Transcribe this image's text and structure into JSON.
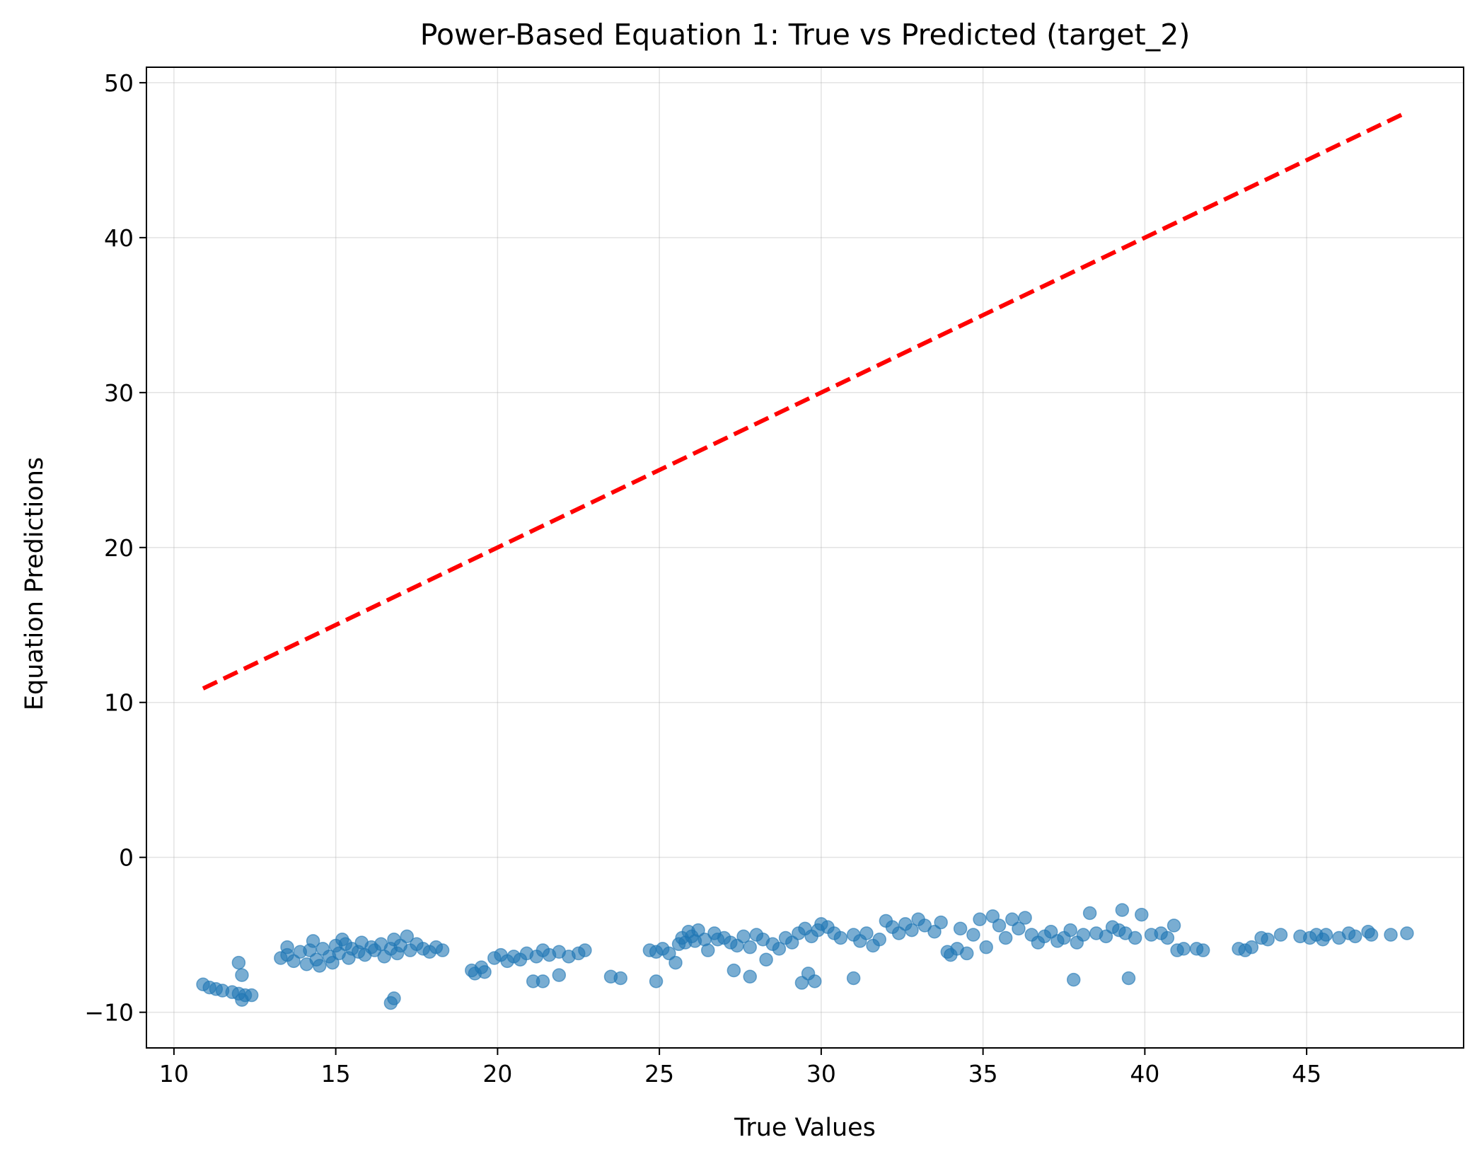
{
  "chart_data": {
    "type": "scatter",
    "title": "Power-Based Equation 1: True vs Predicted (target_2)",
    "xlabel": "True Values",
    "ylabel": "Equation Predictions",
    "xlim": [
      9.15,
      49.85
    ],
    "ylim": [
      -12.3,
      51.0
    ],
    "xticks": [
      10,
      15,
      20,
      25,
      30,
      35,
      40,
      45
    ],
    "yticks": [
      -10,
      0,
      10,
      20,
      30,
      40,
      50
    ],
    "grid": true,
    "colors": {
      "points": "#1f77b4",
      "reference_line": "#ff0000"
    },
    "reference_line": {
      "style": "dashed",
      "x": [
        10.9,
        48.1
      ],
      "y": [
        10.9,
        48.1
      ]
    },
    "series": [
      {
        "type": "scatter",
        "points": [
          [
            10.9,
            -8.2
          ],
          [
            11.1,
            -8.4
          ],
          [
            11.3,
            -8.5
          ],
          [
            11.5,
            -8.6
          ],
          [
            11.8,
            -8.7
          ],
          [
            12.0,
            -8.8
          ],
          [
            12.1,
            -9.2
          ],
          [
            12.2,
            -8.9
          ],
          [
            12.4,
            -8.9
          ],
          [
            12.0,
            -6.8
          ],
          [
            12.1,
            -7.6
          ],
          [
            13.3,
            -6.5
          ],
          [
            13.5,
            -6.3
          ],
          [
            13.7,
            -6.7
          ],
          [
            13.9,
            -6.1
          ],
          [
            14.1,
            -6.9
          ],
          [
            14.2,
            -6.0
          ],
          [
            14.4,
            -6.6
          ],
          [
            14.5,
            -7.0
          ],
          [
            14.6,
            -5.9
          ],
          [
            14.8,
            -6.4
          ],
          [
            14.9,
            -6.8
          ],
          [
            15.0,
            -5.7
          ],
          [
            15.1,
            -6.2
          ],
          [
            15.3,
            -5.6
          ],
          [
            15.4,
            -6.5
          ],
          [
            15.5,
            -5.9
          ],
          [
            15.7,
            -6.1
          ],
          [
            15.8,
            -5.5
          ],
          [
            15.9,
            -6.3
          ],
          [
            16.1,
            -5.8
          ],
          [
            16.2,
            -6.0
          ],
          [
            16.4,
            -5.6
          ],
          [
            16.5,
            -6.4
          ],
          [
            16.7,
            -5.9
          ],
          [
            16.8,
            -5.3
          ],
          [
            16.9,
            -6.2
          ],
          [
            17.0,
            -5.7
          ],
          [
            17.2,
            -5.1
          ],
          [
            17.3,
            -6.0
          ],
          [
            17.5,
            -5.6
          ],
          [
            17.7,
            -5.9
          ],
          [
            17.9,
            -6.1
          ],
          [
            18.1,
            -5.8
          ],
          [
            18.3,
            -6.0
          ],
          [
            16.7,
            -9.4
          ],
          [
            16.8,
            -9.1
          ],
          [
            13.5,
            -5.8
          ],
          [
            14.3,
            -5.4
          ],
          [
            15.2,
            -5.3
          ],
          [
            19.2,
            -7.3
          ],
          [
            19.3,
            -7.5
          ],
          [
            19.5,
            -7.1
          ],
          [
            19.6,
            -7.4
          ],
          [
            19.9,
            -6.5
          ],
          [
            20.1,
            -6.3
          ],
          [
            20.3,
            -6.7
          ],
          [
            20.5,
            -6.4
          ],
          [
            20.7,
            -6.6
          ],
          [
            20.9,
            -6.2
          ],
          [
            21.2,
            -6.4
          ],
          [
            21.4,
            -6.0
          ],
          [
            21.6,
            -6.3
          ],
          [
            21.9,
            -6.1
          ],
          [
            22.2,
            -6.4
          ],
          [
            22.5,
            -6.2
          ],
          [
            22.7,
            -6.0
          ],
          [
            21.1,
            -8.0
          ],
          [
            21.4,
            -8.0
          ],
          [
            21.9,
            -7.6
          ],
          [
            23.5,
            -7.7
          ],
          [
            23.8,
            -7.8
          ],
          [
            24.7,
            -6.0
          ],
          [
            24.9,
            -6.1
          ],
          [
            25.1,
            -5.9
          ],
          [
            25.3,
            -6.2
          ],
          [
            25.5,
            -6.8
          ],
          [
            25.6,
            -5.6
          ],
          [
            25.7,
            -5.2
          ],
          [
            25.8,
            -5.5
          ],
          [
            25.9,
            -4.8
          ],
          [
            26.0,
            -5.1
          ],
          [
            26.1,
            -5.4
          ],
          [
            26.2,
            -4.7
          ],
          [
            26.4,
            -5.3
          ],
          [
            26.5,
            -6.0
          ],
          [
            26.7,
            -4.9
          ],
          [
            26.8,
            -5.3
          ],
          [
            27.0,
            -5.2
          ],
          [
            27.2,
            -5.5
          ],
          [
            27.4,
            -5.7
          ],
          [
            27.6,
            -5.1
          ],
          [
            27.8,
            -5.8
          ],
          [
            28.0,
            -5.0
          ],
          [
            28.2,
            -5.3
          ],
          [
            28.3,
            -6.6
          ],
          [
            28.5,
            -5.6
          ],
          [
            28.7,
            -5.9
          ],
          [
            28.9,
            -5.2
          ],
          [
            29.1,
            -5.5
          ],
          [
            29.3,
            -4.9
          ],
          [
            29.5,
            -4.6
          ],
          [
            29.7,
            -5.1
          ],
          [
            29.9,
            -4.7
          ],
          [
            30.0,
            -4.3
          ],
          [
            30.2,
            -4.5
          ],
          [
            30.4,
            -4.9
          ],
          [
            30.6,
            -5.2
          ],
          [
            24.9,
            -8.0
          ],
          [
            27.3,
            -7.3
          ],
          [
            27.8,
            -7.7
          ],
          [
            29.4,
            -8.1
          ],
          [
            29.6,
            -7.5
          ],
          [
            29.8,
            -8.0
          ],
          [
            31.0,
            -7.8
          ],
          [
            31.0,
            -5.0
          ],
          [
            31.2,
            -5.4
          ],
          [
            31.4,
            -4.9
          ],
          [
            31.6,
            -5.7
          ],
          [
            31.8,
            -5.3
          ],
          [
            32.0,
            -4.1
          ],
          [
            32.2,
            -4.5
          ],
          [
            32.4,
            -4.9
          ],
          [
            32.6,
            -4.3
          ],
          [
            32.8,
            -4.7
          ],
          [
            33.0,
            -4.0
          ],
          [
            33.2,
            -4.4
          ],
          [
            33.5,
            -4.8
          ],
          [
            33.7,
            -4.2
          ],
          [
            33.9,
            -6.1
          ],
          [
            34.0,
            -6.3
          ],
          [
            34.2,
            -5.9
          ],
          [
            34.3,
            -4.6
          ],
          [
            34.5,
            -6.2
          ],
          [
            34.7,
            -5.0
          ],
          [
            34.9,
            -4.0
          ],
          [
            35.1,
            -5.8
          ],
          [
            35.3,
            -3.8
          ],
          [
            35.5,
            -4.4
          ],
          [
            35.7,
            -5.2
          ],
          [
            35.9,
            -4.0
          ],
          [
            36.1,
            -4.6
          ],
          [
            36.3,
            -3.9
          ],
          [
            36.5,
            -5.0
          ],
          [
            36.7,
            -5.5
          ],
          [
            36.9,
            -5.1
          ],
          [
            37.1,
            -4.8
          ],
          [
            37.3,
            -5.4
          ],
          [
            37.5,
            -5.2
          ],
          [
            37.7,
            -4.7
          ],
          [
            37.9,
            -5.5
          ],
          [
            38.1,
            -5.0
          ],
          [
            38.3,
            -3.6
          ],
          [
            38.5,
            -4.9
          ],
          [
            38.8,
            -5.1
          ],
          [
            39.0,
            -4.5
          ],
          [
            39.2,
            -4.7
          ],
          [
            39.3,
            -3.4
          ],
          [
            39.4,
            -4.9
          ],
          [
            39.7,
            -5.2
          ],
          [
            39.9,
            -3.7
          ],
          [
            40.2,
            -5.0
          ],
          [
            40.5,
            -4.9
          ],
          [
            40.7,
            -5.2
          ],
          [
            40.9,
            -4.4
          ],
          [
            41.0,
            -6.0
          ],
          [
            41.2,
            -5.9
          ],
          [
            41.6,
            -5.9
          ],
          [
            41.8,
            -6.0
          ],
          [
            37.8,
            -7.9
          ],
          [
            39.5,
            -7.8
          ],
          [
            42.9,
            -5.9
          ],
          [
            43.1,
            -6.0
          ],
          [
            43.3,
            -5.8
          ],
          [
            43.6,
            -5.2
          ],
          [
            43.8,
            -5.3
          ],
          [
            44.2,
            -5.0
          ],
          [
            44.8,
            -5.1
          ],
          [
            45.1,
            -5.2
          ],
          [
            45.3,
            -5.0
          ],
          [
            45.5,
            -5.3
          ],
          [
            45.6,
            -5.0
          ],
          [
            46.0,
            -5.2
          ],
          [
            46.3,
            -4.9
          ],
          [
            46.5,
            -5.1
          ],
          [
            46.9,
            -4.8
          ],
          [
            47.0,
            -5.0
          ],
          [
            47.6,
            -5.0
          ],
          [
            48.1,
            -4.9
          ]
        ]
      }
    ]
  }
}
